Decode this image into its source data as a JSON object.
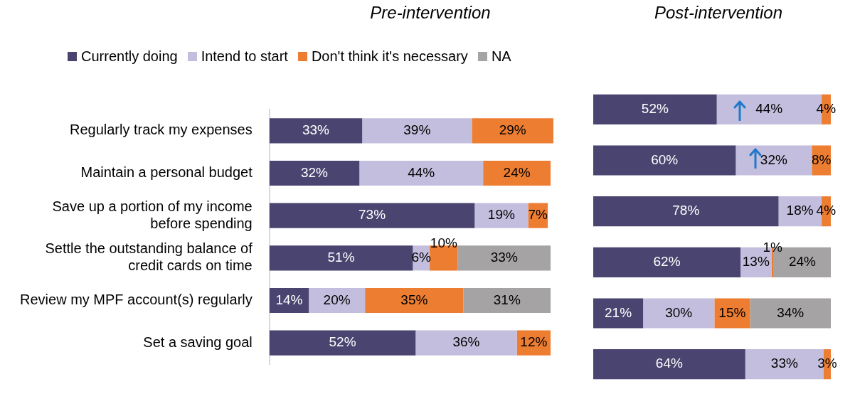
{
  "chart_data": [
    {
      "type": "bar",
      "orientation": "horizontal",
      "stacked": true,
      "title": "Pre-intervention",
      "legend": "top",
      "tick_labels": "y",
      "categories": [
        "Regularly track my expenses",
        "Maintain a personal budget",
        "Save up a portion of my income before spending",
        "Settle the outstanding balance of credit cards on time",
        "Review my MPF account(s) regularly",
        "Set a saving goal"
      ],
      "series": [
        {
          "name": "Currently doing",
          "color": "#4a4470",
          "values": [
            33,
            32,
            73,
            51,
            14,
            52
          ],
          "value_labels": [
            "33%",
            "32%",
            "73%",
            "51%",
            "14%",
            "52%"
          ]
        },
        {
          "name": "Intend to start",
          "color": "#c3bedd",
          "values": [
            39,
            44,
            19,
            6,
            20,
            36
          ],
          "value_labels": [
            "39%",
            "44%",
            "19%",
            "6%",
            "20%",
            "36%"
          ]
        },
        {
          "name": "Don't think it's necessary",
          "color": "#ed7d31",
          "values": [
            29,
            24,
            7,
            10,
            35,
            12
          ],
          "value_labels": [
            "29%",
            "24%",
            "7%",
            "10%",
            "35%",
            "12%"
          ]
        },
        {
          "name": "NA",
          "color": "#a5a3a3",
          "values": [
            null,
            null,
            null,
            33,
            31,
            null
          ],
          "value_labels": [
            null,
            null,
            null,
            "33%",
            "31%",
            null
          ]
        }
      ]
    },
    {
      "type": "bar",
      "orientation": "horizontal",
      "stacked": true,
      "title": "Post-intervention",
      "tick_labels": false,
      "categories": [
        null,
        null,
        null,
        null,
        null,
        null
      ],
      "series": [
        {
          "color": "#4a4470",
          "values": [
            52,
            60,
            78,
            62,
            21,
            64
          ],
          "value_labels": [
            "52%",
            "60%",
            "78%",
            "62%",
            "21%",
            "64%"
          ]
        },
        {
          "color": "#c3bedd",
          "values": [
            44,
            32,
            18,
            13,
            30,
            33
          ],
          "value_labels": [
            "44%",
            "32%",
            "18%",
            "13%",
            "30%",
            "33%"
          ]
        },
        {
          "color": "#ed7d31",
          "values": [
            4,
            8,
            4,
            1,
            15,
            3
          ],
          "value_labels": [
            "4%",
            "8%",
            "4%",
            "1%",
            "15%",
            "3%"
          ]
        },
        {
          "color": "#a5a3a3",
          "values": [
            null,
            null,
            null,
            24,
            34,
            null
          ],
          "value_labels": [
            null,
            null,
            null,
            "24%",
            "34%",
            null
          ]
        }
      ]
    }
  ]
}
